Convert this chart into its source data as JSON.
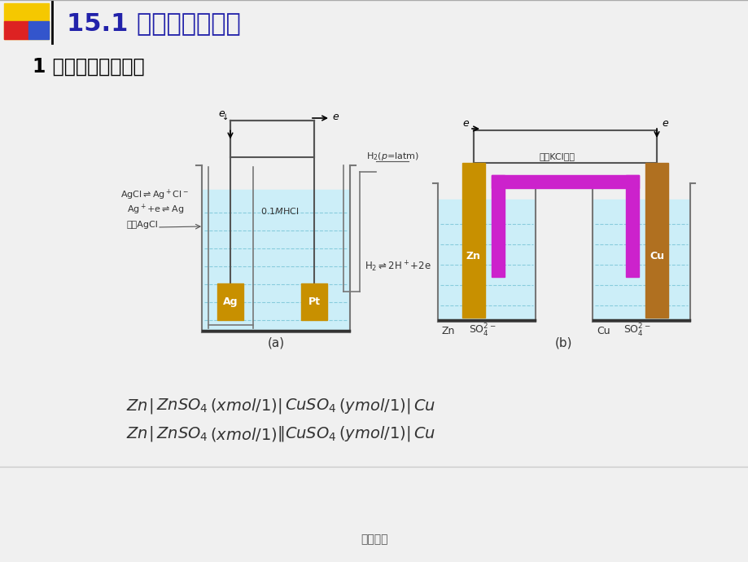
{
  "bg_color": "#f0f0f0",
  "title": "15.1 基本术语及概念",
  "title_color": "#2222aa",
  "subtitle": "1 电化学电池及表示",
  "subtitle_color": "#000000",
  "footer": "精选课件",
  "liquid_color": "#cceef8",
  "beaker_edge": "#777777",
  "electrode_ag_color": "#c89000",
  "electrode_pt_color": "#c89000",
  "electrode_zn_color": "#c89000",
  "electrode_cu_color": "#b07020",
  "salt_bridge_color": "#cc22cc",
  "wire_color": "#555555",
  "label_color": "#333333",
  "dashed_color": "#88ccdd"
}
